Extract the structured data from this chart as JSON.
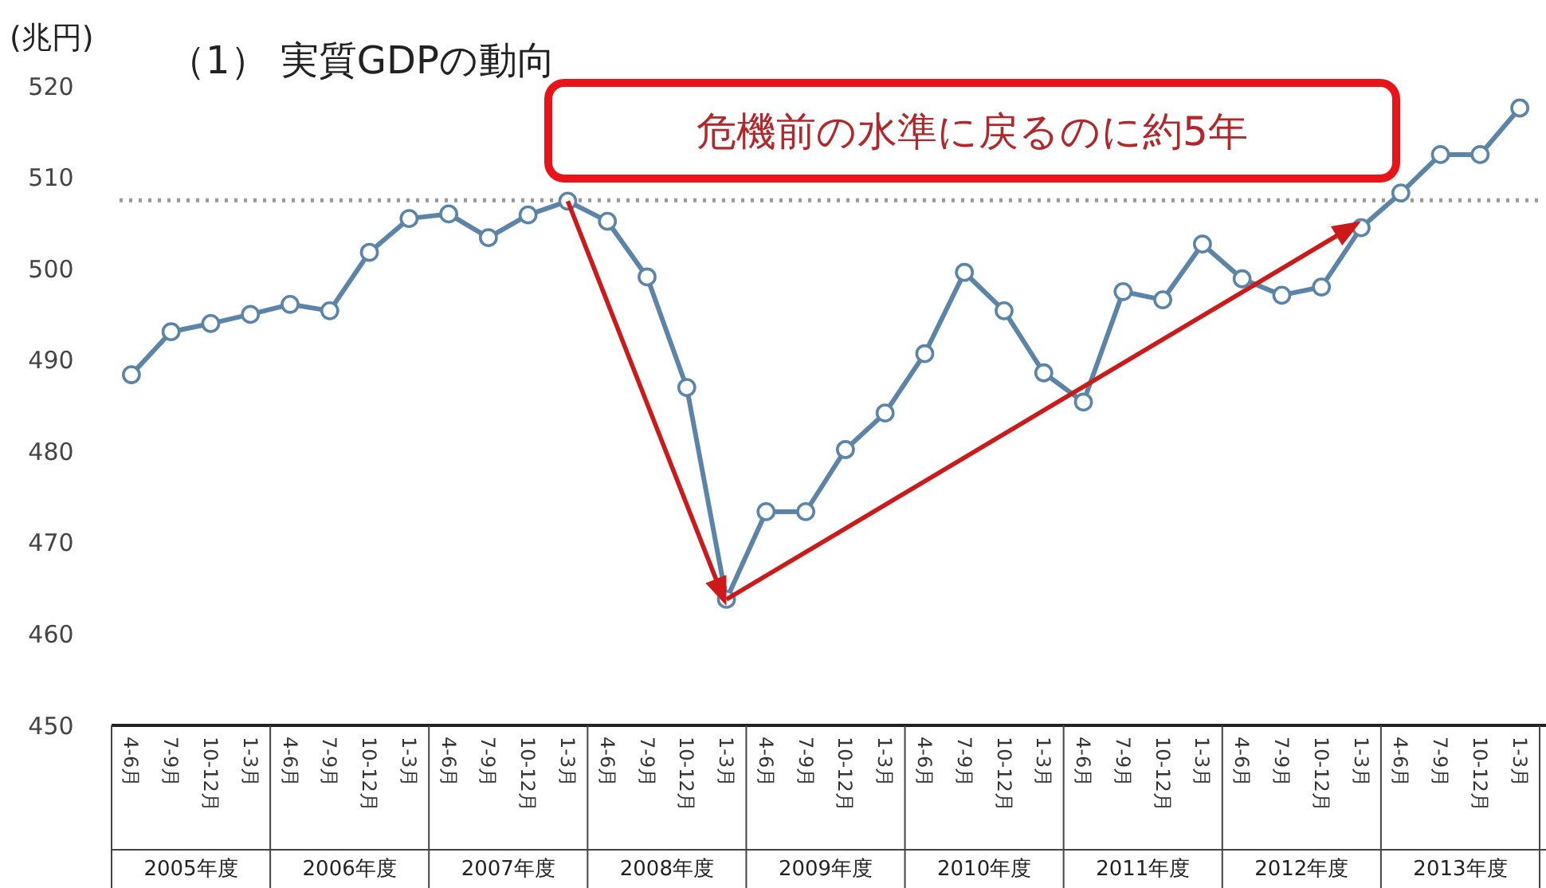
{
  "chart_data": {
    "type": "line",
    "title": "（1） 実質GDPの動向",
    "ylabel": "(兆円)",
    "categories": [
      "4-6月",
      "7-9月",
      "10-12月",
      "1-3月",
      "4-6月",
      "7-9月",
      "10-12月",
      "1-3月",
      "4-6月",
      "7-9月",
      "10-12月",
      "1-3月",
      "4-6月",
      "7-9月",
      "10-12月",
      "1-3月",
      "4-6月",
      "7-9月",
      "10-12月",
      "1-3月",
      "4-6月",
      "7-9月",
      "10-12月",
      "1-3月",
      "4-6月",
      "7-9月",
      "10-12月",
      "1-3月",
      "4-6月",
      "7-9月",
      "10-12月",
      "1-3月",
      "4-6月",
      "7-9月",
      "10-12月",
      "1-3月"
    ],
    "series": [
      {
        "color": "#5b84a8",
        "values": [
          488.4,
          493.1,
          494.0,
          495.0,
          496.1,
          495.4,
          501.8,
          505.5,
          506.0,
          503.4,
          505.9,
          507.4,
          505.2,
          499.1,
          487.0,
          463.8,
          473.4,
          473.4,
          480.2,
          484.2,
          490.7,
          499.6,
          495.4,
          488.6,
          485.4,
          497.5,
          496.6,
          502.7,
          498.9,
          497.1,
          498.0,
          504.5,
          508.3,
          512.5,
          512.5,
          517.6
        ]
      }
    ],
    "ylim": [
      450,
      520
    ],
    "yticks": [
      450,
      460,
      470,
      480,
      490,
      500,
      510,
      520
    ],
    "grid": false,
    "marker": "circle",
    "line_style": "solid",
    "ref_lines": [
      {
        "axis": "y",
        "value": 507.5,
        "color": "#999999",
        "line_style": "dotted"
      }
    ],
    "annotations": [
      "危機前の水準に戻るのに約5年",
      "2005年度",
      "2006年度",
      "2007年度",
      "2008年度",
      "2009年度",
      "2010年度",
      "2011年度",
      "2012年度",
      "2013年度"
    ]
  }
}
